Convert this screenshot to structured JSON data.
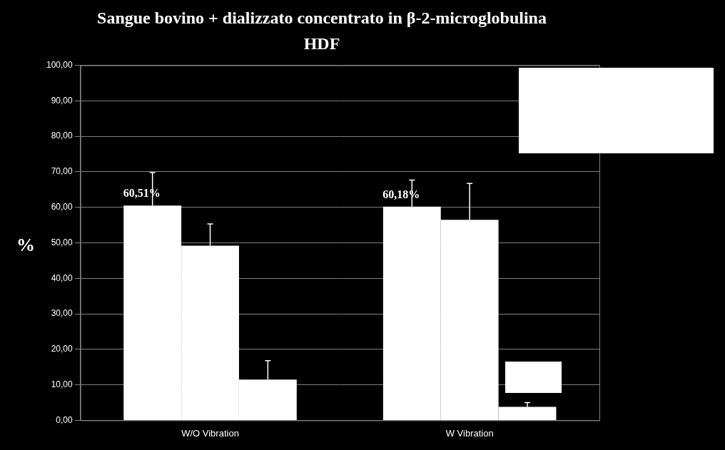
{
  "chart_data": {
    "type": "bar",
    "title": "Sangue bovino + dializzato concentrato in β-2-microglobulina",
    "subtitle": "HDF",
    "y_label": "%",
    "categories": [
      "W/O Vibration",
      "W Vibration"
    ],
    "series": [
      {
        "color": "#ffffff",
        "values": [
          60.51,
          60.18
        ],
        "errors": [
          9.3,
          7.5
        ],
        "value_labels": [
          "60,51%",
          "60,18%"
        ]
      },
      {
        "color": "#ffffff",
        "values": [
          49.2,
          56.5
        ],
        "errors": [
          6.1,
          10.2
        ]
      },
      {
        "color": "#ffffff",
        "values": [
          11.5,
          3.8
        ],
        "errors": [
          5.3,
          1.2
        ]
      }
    ],
    "ylim": [
      0,
      100
    ],
    "yticks": [
      {
        "value": 0,
        "label": "0,00"
      },
      {
        "value": 10,
        "label": "10,00"
      },
      {
        "value": 20,
        "label": "20,00"
      },
      {
        "value": 30,
        "label": "30,00"
      },
      {
        "value": 40,
        "label": "40,00"
      },
      {
        "value": 50,
        "label": "50,00"
      },
      {
        "value": 60,
        "label": "60,00"
      },
      {
        "value": 70,
        "label": "70,00"
      },
      {
        "value": 80,
        "label": "80,00"
      },
      {
        "value": 90,
        "label": "90,00"
      },
      {
        "value": 100,
        "label": "100,00"
      }
    ],
    "grid": true
  }
}
